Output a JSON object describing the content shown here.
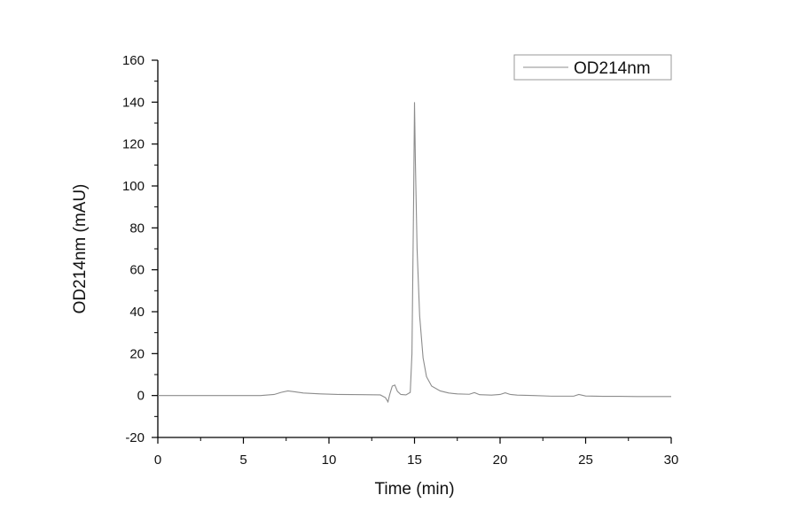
{
  "chart_data": {
    "type": "line",
    "title": "",
    "xlabel": "Time (min)",
    "ylabel": "OD214nm (mAU)",
    "xlim": [
      0,
      30
    ],
    "ylim": [
      -20,
      160
    ],
    "x_ticks": [
      0,
      5,
      10,
      15,
      20,
      25,
      30
    ],
    "y_ticks": [
      -20,
      0,
      20,
      40,
      60,
      80,
      100,
      120,
      140,
      160
    ],
    "grid": false,
    "legend_position": "top-right",
    "line_color": "#8c8c8c",
    "series": [
      {
        "name": "OD214nm",
        "x": [
          0,
          2,
          4,
          5,
          6,
          6.8,
          7.2,
          7.6,
          8.0,
          8.5,
          9.5,
          10.5,
          12,
          13.0,
          13.3,
          13.45,
          13.55,
          13.7,
          13.85,
          14.0,
          14.2,
          14.5,
          14.75,
          14.85,
          14.95,
          15.0,
          15.05,
          15.15,
          15.3,
          15.5,
          15.7,
          16.0,
          16.5,
          17.0,
          17.5,
          18.2,
          18.5,
          18.8,
          19.5,
          20.0,
          20.3,
          20.6,
          21,
          22,
          23,
          24.3,
          24.6,
          25,
          26,
          27,
          28,
          29,
          30
        ],
        "y": [
          0,
          0,
          0,
          0,
          0,
          0.5,
          1.5,
          2.2,
          1.8,
          1.2,
          0.8,
          0.5,
          0.4,
          0.3,
          -1.0,
          -3.0,
          0.5,
          4.5,
          5.0,
          2.0,
          0.5,
          0.3,
          1.5,
          20,
          95,
          140,
          112,
          70,
          38,
          18,
          9,
          4.5,
          2.2,
          1.2,
          0.8,
          0.6,
          1.4,
          0.4,
          0.2,
          0.5,
          1.3,
          0.5,
          0.2,
          0,
          -0.3,
          -0.3,
          0.5,
          -0.2,
          -0.4,
          -0.4,
          -0.5,
          -0.5,
          -0.5
        ]
      }
    ]
  }
}
